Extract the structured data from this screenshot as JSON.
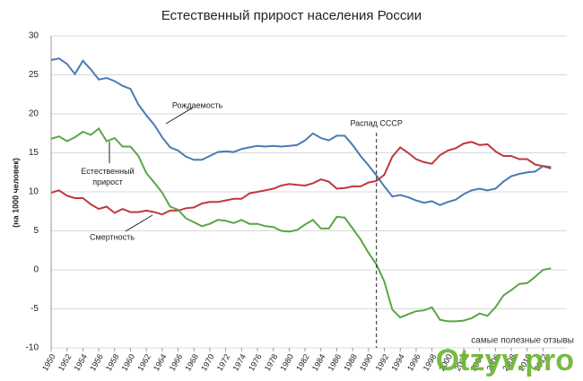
{
  "chart_data": {
    "type": "line",
    "title": "Естественный прирост населения России",
    "y_label": "(на 1000 человек)",
    "x": [
      1950,
      1951,
      1952,
      1953,
      1954,
      1955,
      1956,
      1957,
      1958,
      1959,
      1960,
      1961,
      1962,
      1963,
      1964,
      1965,
      1966,
      1967,
      1968,
      1969,
      1970,
      1971,
      1972,
      1973,
      1974,
      1975,
      1976,
      1977,
      1978,
      1979,
      1980,
      1981,
      1982,
      1983,
      1984,
      1985,
      1986,
      1987,
      1988,
      1989,
      1990,
      1991,
      1992,
      1993,
      1994,
      1995,
      1996,
      1997,
      1998,
      1999,
      2000,
      2001,
      2002,
      2003,
      2004,
      2005,
      2006,
      2007,
      2008,
      2009,
      2010,
      2011,
      2012,
      2013
    ],
    "series": [
      {
        "name": "Рождаемость",
        "color": "#4a7ab5",
        "values": [
          26.9,
          27.1,
          26.4,
          25.1,
          26.8,
          25.7,
          24.4,
          24.6,
          24.2,
          23.6,
          23.2,
          21.2,
          19.8,
          18.6,
          17.0,
          15.7,
          15.3,
          14.5,
          14.1,
          14.1,
          14.6,
          15.1,
          15.2,
          15.1,
          15.5,
          15.7,
          15.9,
          15.8,
          15.9,
          15.8,
          15.9,
          16.0,
          16.6,
          17.5,
          16.9,
          16.6,
          17.2,
          17.2,
          16.0,
          14.6,
          13.4,
          12.1,
          10.7,
          9.4,
          9.6,
          9.3,
          8.9,
          8.6,
          8.8,
          8.3,
          8.7,
          9.0,
          9.7,
          10.2,
          10.4,
          10.2,
          10.4,
          11.3,
          12.0,
          12.3,
          12.5,
          12.6,
          13.3,
          13.2
        ]
      },
      {
        "name": "Смертность",
        "color": "#c0383a",
        "values": [
          9.9,
          10.2,
          9.5,
          9.2,
          9.2,
          8.4,
          7.8,
          8.1,
          7.3,
          7.8,
          7.4,
          7.4,
          7.6,
          7.4,
          7.1,
          7.6,
          7.6,
          7.9,
          8.0,
          8.5,
          8.7,
          8.7,
          8.9,
          9.1,
          9.1,
          9.8,
          10.0,
          10.2,
          10.4,
          10.8,
          11.0,
          10.9,
          10.8,
          11.1,
          11.6,
          11.3,
          10.4,
          10.5,
          10.7,
          10.7,
          11.2,
          11.4,
          12.2,
          14.5,
          15.7,
          15.0,
          14.2,
          13.8,
          13.6,
          14.7,
          15.3,
          15.6,
          16.2,
          16.4,
          16.0,
          16.1,
          15.2,
          14.6,
          14.6,
          14.2,
          14.2,
          13.5,
          13.3,
          13.0
        ]
      },
      {
        "name": "Естественный прирост",
        "color": "#5aa545",
        "values": [
          16.8,
          17.1,
          16.5,
          17.0,
          17.7,
          17.3,
          18.1,
          16.5,
          16.9,
          15.8,
          15.8,
          14.6,
          12.4,
          11.2,
          9.9,
          8.1,
          7.7,
          6.6,
          6.1,
          5.6,
          5.9,
          6.4,
          6.3,
          6.0,
          6.4,
          5.9,
          5.9,
          5.6,
          5.5,
          5.0,
          4.9,
          5.1,
          5.8,
          6.4,
          5.3,
          5.3,
          6.8,
          6.7,
          5.3,
          3.9,
          2.2,
          0.7,
          -1.5,
          -5.1,
          -6.1,
          -5.7,
          -5.3,
          -5.2,
          -4.8,
          -6.4,
          -6.6,
          -6.6,
          -6.5,
          -6.2,
          -5.6,
          -5.9,
          -4.8,
          -3.3,
          -2.6,
          -1.8,
          -1.7,
          -0.9,
          0.0,
          0.2
        ]
      }
    ],
    "xlim": [
      1950,
      2015
    ],
    "xticks": [
      1950,
      1952,
      1954,
      1956,
      1958,
      1960,
      1962,
      1964,
      1966,
      1968,
      1970,
      1972,
      1974,
      1976,
      1978,
      1980,
      1982,
      1984,
      1986,
      1988,
      1990,
      1992,
      1994,
      1996,
      1998,
      2000,
      2002,
      2004,
      2006,
      2008,
      2010,
      2012
    ],
    "ylim": [
      -10,
      30
    ],
    "yticks": [
      -10,
      -5,
      0,
      5,
      10,
      15,
      20,
      25,
      30
    ],
    "grid": true,
    "annotation": {
      "text": "Распад СССР",
      "x": 1991
    }
  },
  "watermark": {
    "tagline": "самые полезные отзывы",
    "brand": "Otzyv.pro"
  }
}
